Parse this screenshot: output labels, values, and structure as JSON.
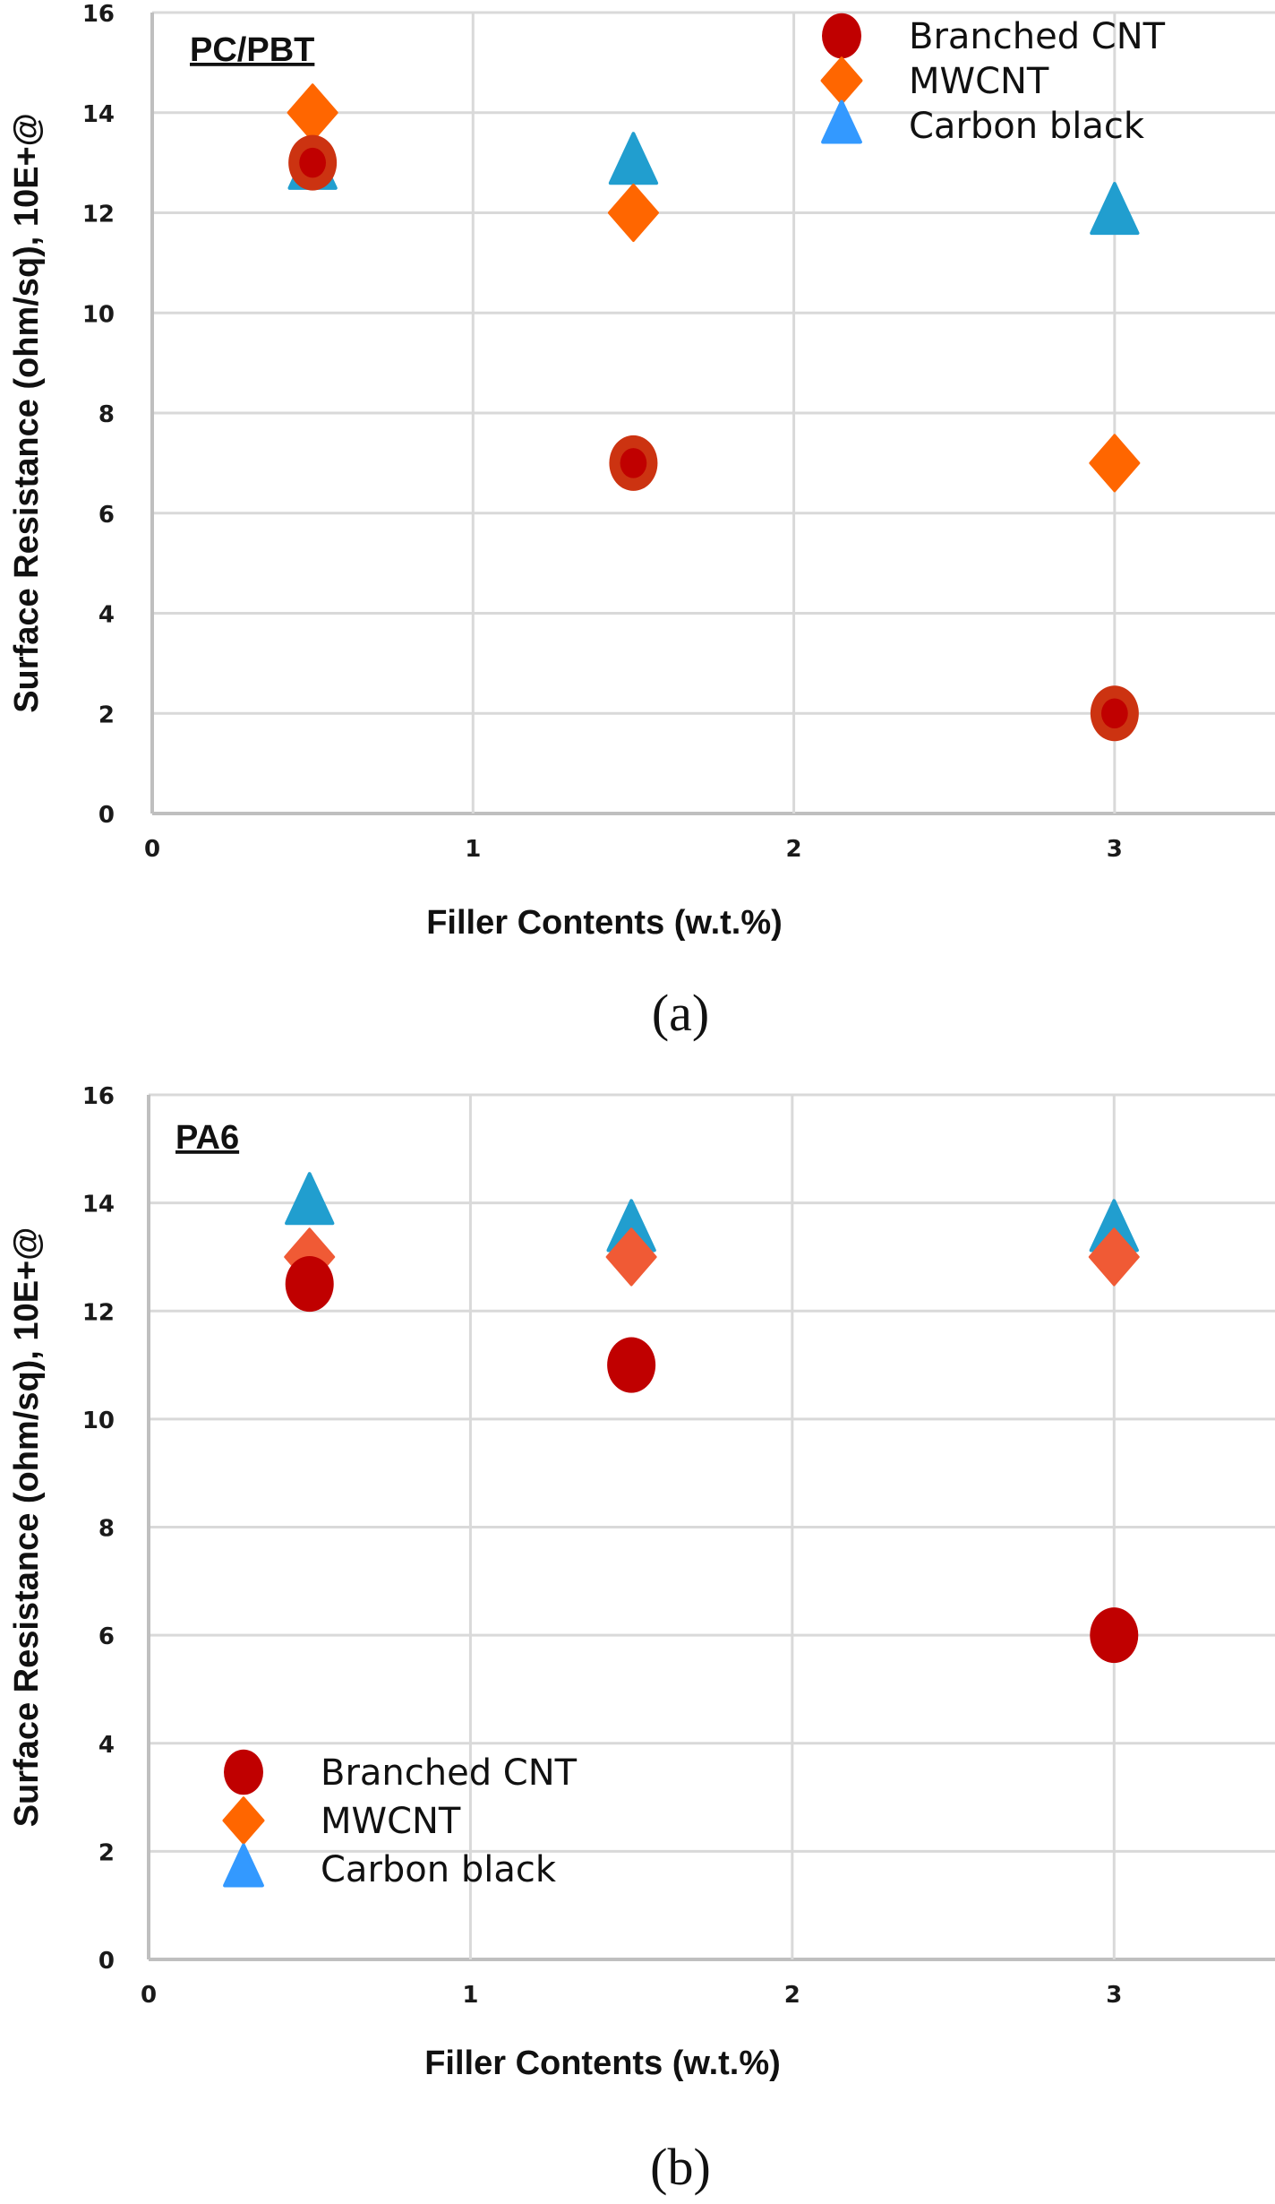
{
  "chart_data": [
    {
      "type": "scatter",
      "panel_label": "(a)",
      "title": "PC/PBT",
      "xlabel": "Filler Contents (w.t.%)",
      "ylabel": "Surface Resistance (ohm/sq), 10E+@",
      "xlim": [
        0,
        3.5
      ],
      "ylim": [
        0,
        16
      ],
      "xticks": [
        0,
        1,
        2,
        3
      ],
      "yticks": [
        0,
        2,
        4,
        6,
        8,
        10,
        12,
        14,
        16
      ],
      "grid": true,
      "legend_position": "top-right",
      "series": [
        {
          "name": "Branched CNT",
          "marker": "circle",
          "color": "#c00000",
          "edge_color": "#cc3311",
          "x": [
            0.5,
            1.5,
            3
          ],
          "y": [
            13,
            7,
            2
          ]
        },
        {
          "name": "MWCNT",
          "marker": "diamond",
          "color": "#ff6600",
          "x": [
            0.5,
            1.5,
            3
          ],
          "y": [
            14,
            12,
            7
          ]
        },
        {
          "name": "Carbon black",
          "marker": "triangle",
          "color": "#219ecf",
          "legend_color": "#3399ff",
          "x": [
            0.5,
            1.5,
            3
          ],
          "y": [
            12.9,
            13,
            12
          ]
        }
      ]
    },
    {
      "type": "scatter",
      "panel_label": "(b)",
      "title": "PA6",
      "xlabel": "Filler Contents (w.t.%)",
      "ylabel": "Surface Resistance (ohm/sq), 10E+@",
      "xlim": [
        0,
        3.5
      ],
      "ylim": [
        0,
        16
      ],
      "xticks": [
        0,
        1,
        2,
        3
      ],
      "yticks": [
        0,
        2,
        4,
        6,
        8,
        10,
        12,
        14,
        16
      ],
      "grid": true,
      "legend_position": "bottom-left",
      "series": [
        {
          "name": "Branched CNT",
          "marker": "circle",
          "color": "#c00000",
          "x": [
            0.5,
            1.5,
            3
          ],
          "y": [
            12.5,
            11,
            6
          ]
        },
        {
          "name": "MWCNT",
          "marker": "diamond",
          "color": "#f05a35",
          "legend_color": "#ff6600",
          "x": [
            0.5,
            1.5,
            3
          ],
          "y": [
            13,
            13,
            13
          ]
        },
        {
          "name": "Carbon black",
          "marker": "triangle",
          "color": "#219ecf",
          "legend_color": "#3399ff",
          "x": [
            0.5,
            1.5,
            3
          ],
          "y": [
            14,
            13.5,
            13.5
          ]
        }
      ]
    }
  ]
}
